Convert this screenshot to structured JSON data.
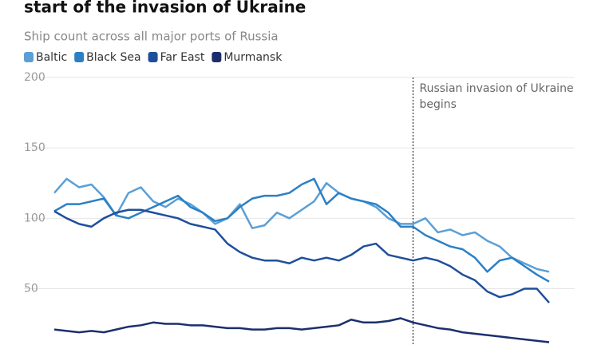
{
  "chart_data": {
    "type": "line",
    "title": "start of the invasion of Ukraine",
    "subtitle": "Ship count across all major ports of Russia",
    "annotation": "Russian invasion of Ukraine begins",
    "annotation_index": 29,
    "categories": [
      null,
      null,
      null,
      null,
      null,
      null,
      null,
      null,
      null,
      null,
      null,
      null,
      null,
      null,
      null,
      null,
      null,
      null,
      null,
      null,
      null,
      null,
      null,
      null,
      null,
      null,
      null,
      null,
      null,
      null,
      null,
      null,
      null,
      null,
      null,
      null,
      null,
      null,
      null,
      null,
      null
    ],
    "series": [
      {
        "name": "Baltic",
        "color": "#5b9fd6",
        "values": [
          118,
          128,
          122,
          124,
          115,
          102,
          118,
          122,
          112,
          108,
          114,
          110,
          104,
          96,
          100,
          110,
          93,
          95,
          104,
          100,
          106,
          112,
          125,
          118,
          114,
          112,
          108,
          100,
          96,
          96,
          100,
          90,
          92,
          88,
          90,
          84,
          80,
          72,
          68,
          64,
          62
        ]
      },
      {
        "name": "Black Sea",
        "color": "#2b80c5",
        "values": [
          105,
          110,
          110,
          112,
          114,
          102,
          100,
          104,
          108,
          112,
          116,
          108,
          104,
          98,
          100,
          108,
          114,
          116,
          116,
          118,
          124,
          128,
          110,
          118,
          114,
          112,
          110,
          104,
          94,
          94,
          88,
          84,
          80,
          78,
          72,
          62,
          70,
          72,
          66,
          60,
          55
        ]
      },
      {
        "name": "Far East",
        "color": "#1f4f9c",
        "values": [
          105,
          100,
          96,
          94,
          100,
          104,
          106,
          106,
          104,
          102,
          100,
          96,
          94,
          92,
          82,
          76,
          72,
          70,
          70,
          68,
          72,
          70,
          72,
          70,
          74,
          80,
          82,
          74,
          72,
          70,
          72,
          70,
          66,
          60,
          56,
          48,
          44,
          46,
          50,
          50,
          40
        ]
      },
      {
        "name": "Murmansk",
        "color": "#1c2f6c",
        "values": [
          21,
          20,
          19,
          20,
          19,
          21,
          23,
          24,
          26,
          25,
          25,
          24,
          24,
          23,
          22,
          22,
          21,
          21,
          22,
          22,
          21,
          22,
          23,
          24,
          28,
          26,
          26,
          27,
          29,
          26,
          24,
          22,
          21,
          19,
          18,
          17,
          16,
          15,
          14,
          13,
          12
        ]
      }
    ],
    "ylim": [
      10,
      200
    ],
    "yticks": [
      50,
      100,
      150,
      200
    ],
    "grid": true
  }
}
